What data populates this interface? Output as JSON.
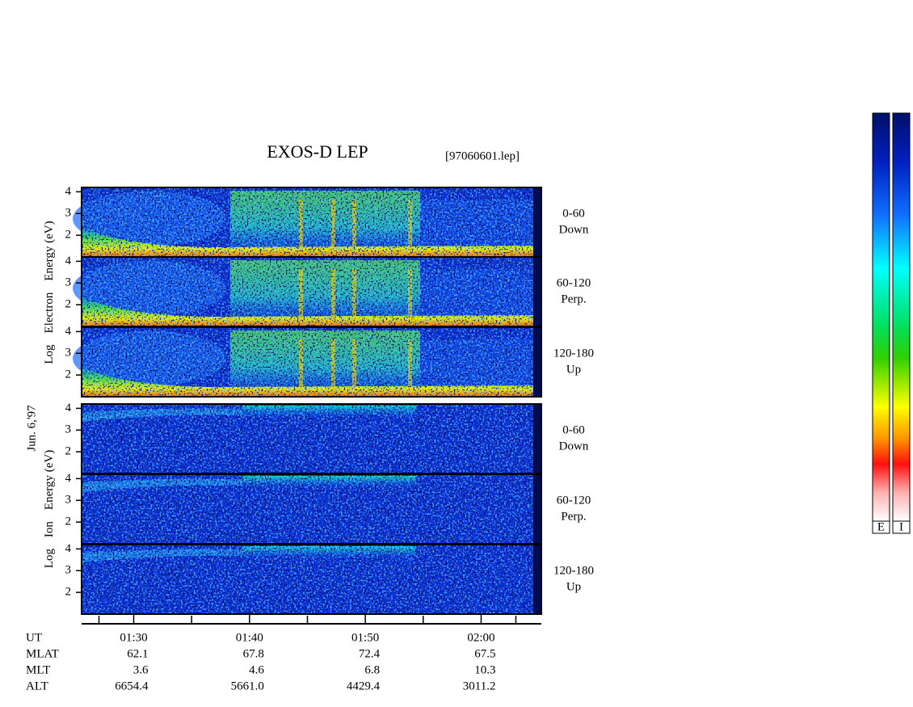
{
  "title": "EXOS-D LEP",
  "file": "[97060601.lep]",
  "date": "Jun. 6,'97",
  "electron_axis_label": [
    "Log",
    "Electron",
    "Energy (eV)"
  ],
  "ion_axis_label": [
    "Log",
    "Ion",
    "Energy (eV)"
  ],
  "energy_axis": {
    "ylim": [
      1,
      4.2
    ],
    "yticks": [
      2,
      3,
      4
    ]
  },
  "panels": [
    {
      "species": "electron",
      "label": [
        "0-60",
        "Down"
      ]
    },
    {
      "species": "electron",
      "label": [
        "60-120",
        "Perp."
      ]
    },
    {
      "species": "electron",
      "label": [
        "120-180",
        "Up"
      ]
    },
    {
      "species": "ion",
      "label": [
        "0-60",
        "Down"
      ]
    },
    {
      "species": "ion",
      "label": [
        "60-120",
        "Perp."
      ]
    },
    {
      "species": "ion",
      "label": [
        "120-180",
        "Up"
      ]
    }
  ],
  "time_axis": {
    "xlim": [
      85.5,
      125.2
    ],
    "xticks": [
      {
        "value": 90,
        "label": "01:30"
      },
      {
        "value": 100,
        "label": "01:40"
      },
      {
        "value": 110,
        "label": "01:50"
      },
      {
        "value": 120,
        "label": "02:00"
      }
    ],
    "minor_xticks": [
      87,
      95,
      105,
      115,
      123
    ]
  },
  "ephemeris": {
    "rows": [
      {
        "name": "UT",
        "values": []
      },
      {
        "name": "MLAT",
        "values": [
          "62.1",
          "67.8",
          "72.4",
          "67.5"
        ]
      },
      {
        "name": "MLT",
        "values": [
          "3.6",
          "4.6",
          "6.8",
          "10.3"
        ]
      },
      {
        "name": "ALT",
        "values": [
          "6654.4",
          "5661.0",
          "4429.4",
          "3011.2"
        ]
      }
    ]
  },
  "colorbars": [
    "E",
    "I"
  ]
}
